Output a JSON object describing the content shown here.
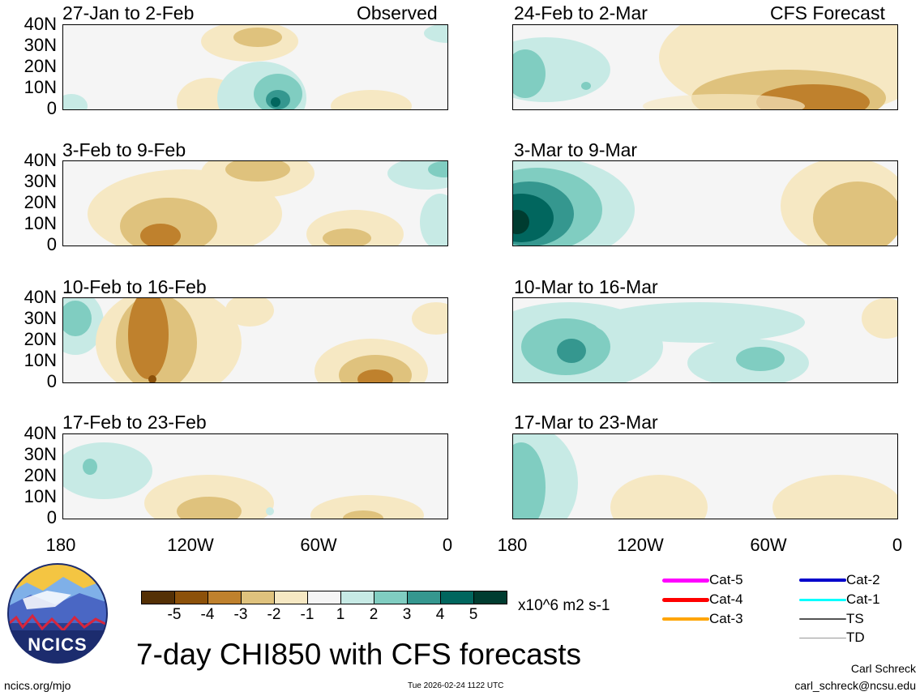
{
  "header": {
    "left_label": "Observed",
    "right_label": "CFS Forecast"
  },
  "panels_left": [
    "27-Jan to 2-Feb",
    "3-Feb to 9-Feb",
    "10-Feb to 16-Feb",
    "17-Feb to 23-Feb"
  ],
  "panels_right": [
    "24-Feb to 2-Mar",
    "3-Mar to 9-Mar",
    "10-Mar to 16-Mar",
    "17-Mar to 23-Mar"
  ],
  "y_ticks": [
    "40N",
    "30N",
    "20N",
    "10N",
    "0"
  ],
  "x_ticks": [
    "180",
    "120W",
    "60W",
    "0"
  ],
  "colorbar": {
    "ticks": [
      "-5",
      "-4",
      "-3",
      "-2",
      "-1",
      "1",
      "2",
      "3",
      "4",
      "5"
    ],
    "units": "x10^6 m2 s-1",
    "colors": [
      "#543005",
      "#8c510a",
      "#bf812d",
      "#dfc27d",
      "#f6e8c3",
      "#f5f5f5",
      "#c7eae5",
      "#80cdc1",
      "#35978f",
      "#01665e",
      "#003c30"
    ]
  },
  "legend": {
    "items": [
      {
        "label": "Cat-5",
        "color": "#ff00ff"
      },
      {
        "label": "Cat-4",
        "color": "#ff0000"
      },
      {
        "label": "Cat-3",
        "color": "#ffa500"
      },
      {
        "label": "Cat-2",
        "color": "#0000cc"
      },
      {
        "label": "Cat-1",
        "color": "#00ffff"
      },
      {
        "label": "TS",
        "color": "#555555"
      },
      {
        "label": "TD",
        "color": "#999999"
      }
    ]
  },
  "logo_text": "NCICS",
  "main_title": "7-day CHI850 with CFS forecasts",
  "footer": {
    "url": "ncics.org/mjo",
    "timestamp": "Tue 2026-02-24 1122 UTC",
    "author": "Carl Schreck",
    "email": "carl_schreck@ncsu.edu"
  }
}
